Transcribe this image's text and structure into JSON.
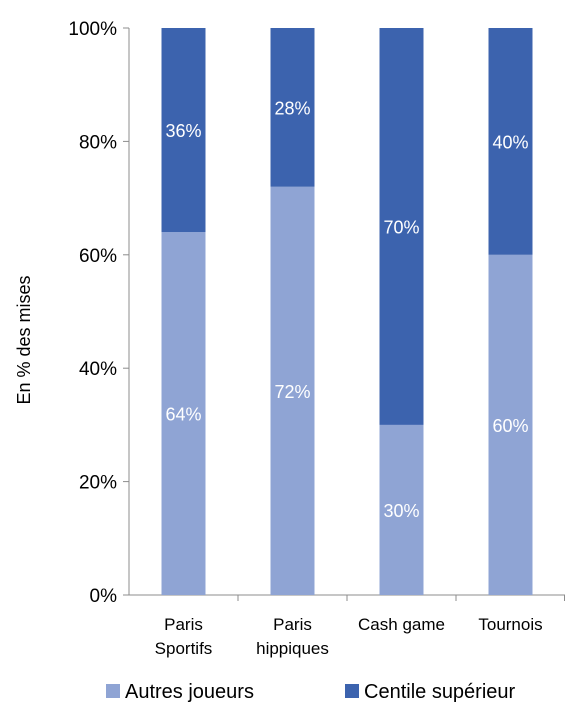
{
  "chart_data": {
    "type": "bar",
    "stacked": true,
    "percent": true,
    "categories": [
      [
        "Paris",
        "Sportifs"
      ],
      [
        "Paris",
        "hippiques"
      ],
      [
        "Cash game"
      ],
      [
        "Tournois"
      ]
    ],
    "series": [
      {
        "name": "Autres joueurs",
        "values": [
          64,
          72,
          30,
          60
        ],
        "labels": [
          "64%",
          "72%",
          "30%",
          "60%"
        ],
        "color": "#8fa4d4"
      },
      {
        "name": "Centile supérieur",
        "values": [
          36,
          28,
          70,
          40
        ],
        "labels": [
          "36%",
          "28%",
          "70%",
          "40%"
        ],
        "color": "#3c63ae"
      }
    ],
    "ylabel": "En % des mises",
    "ylim": [
      0,
      100
    ],
    "yticks": [
      0,
      20,
      40,
      60,
      80,
      100
    ],
    "ytick_labels": [
      "0%",
      "20%",
      "40%",
      "60%",
      "80%",
      "100%"
    ],
    "grid": false,
    "legend_position": "bottom"
  }
}
